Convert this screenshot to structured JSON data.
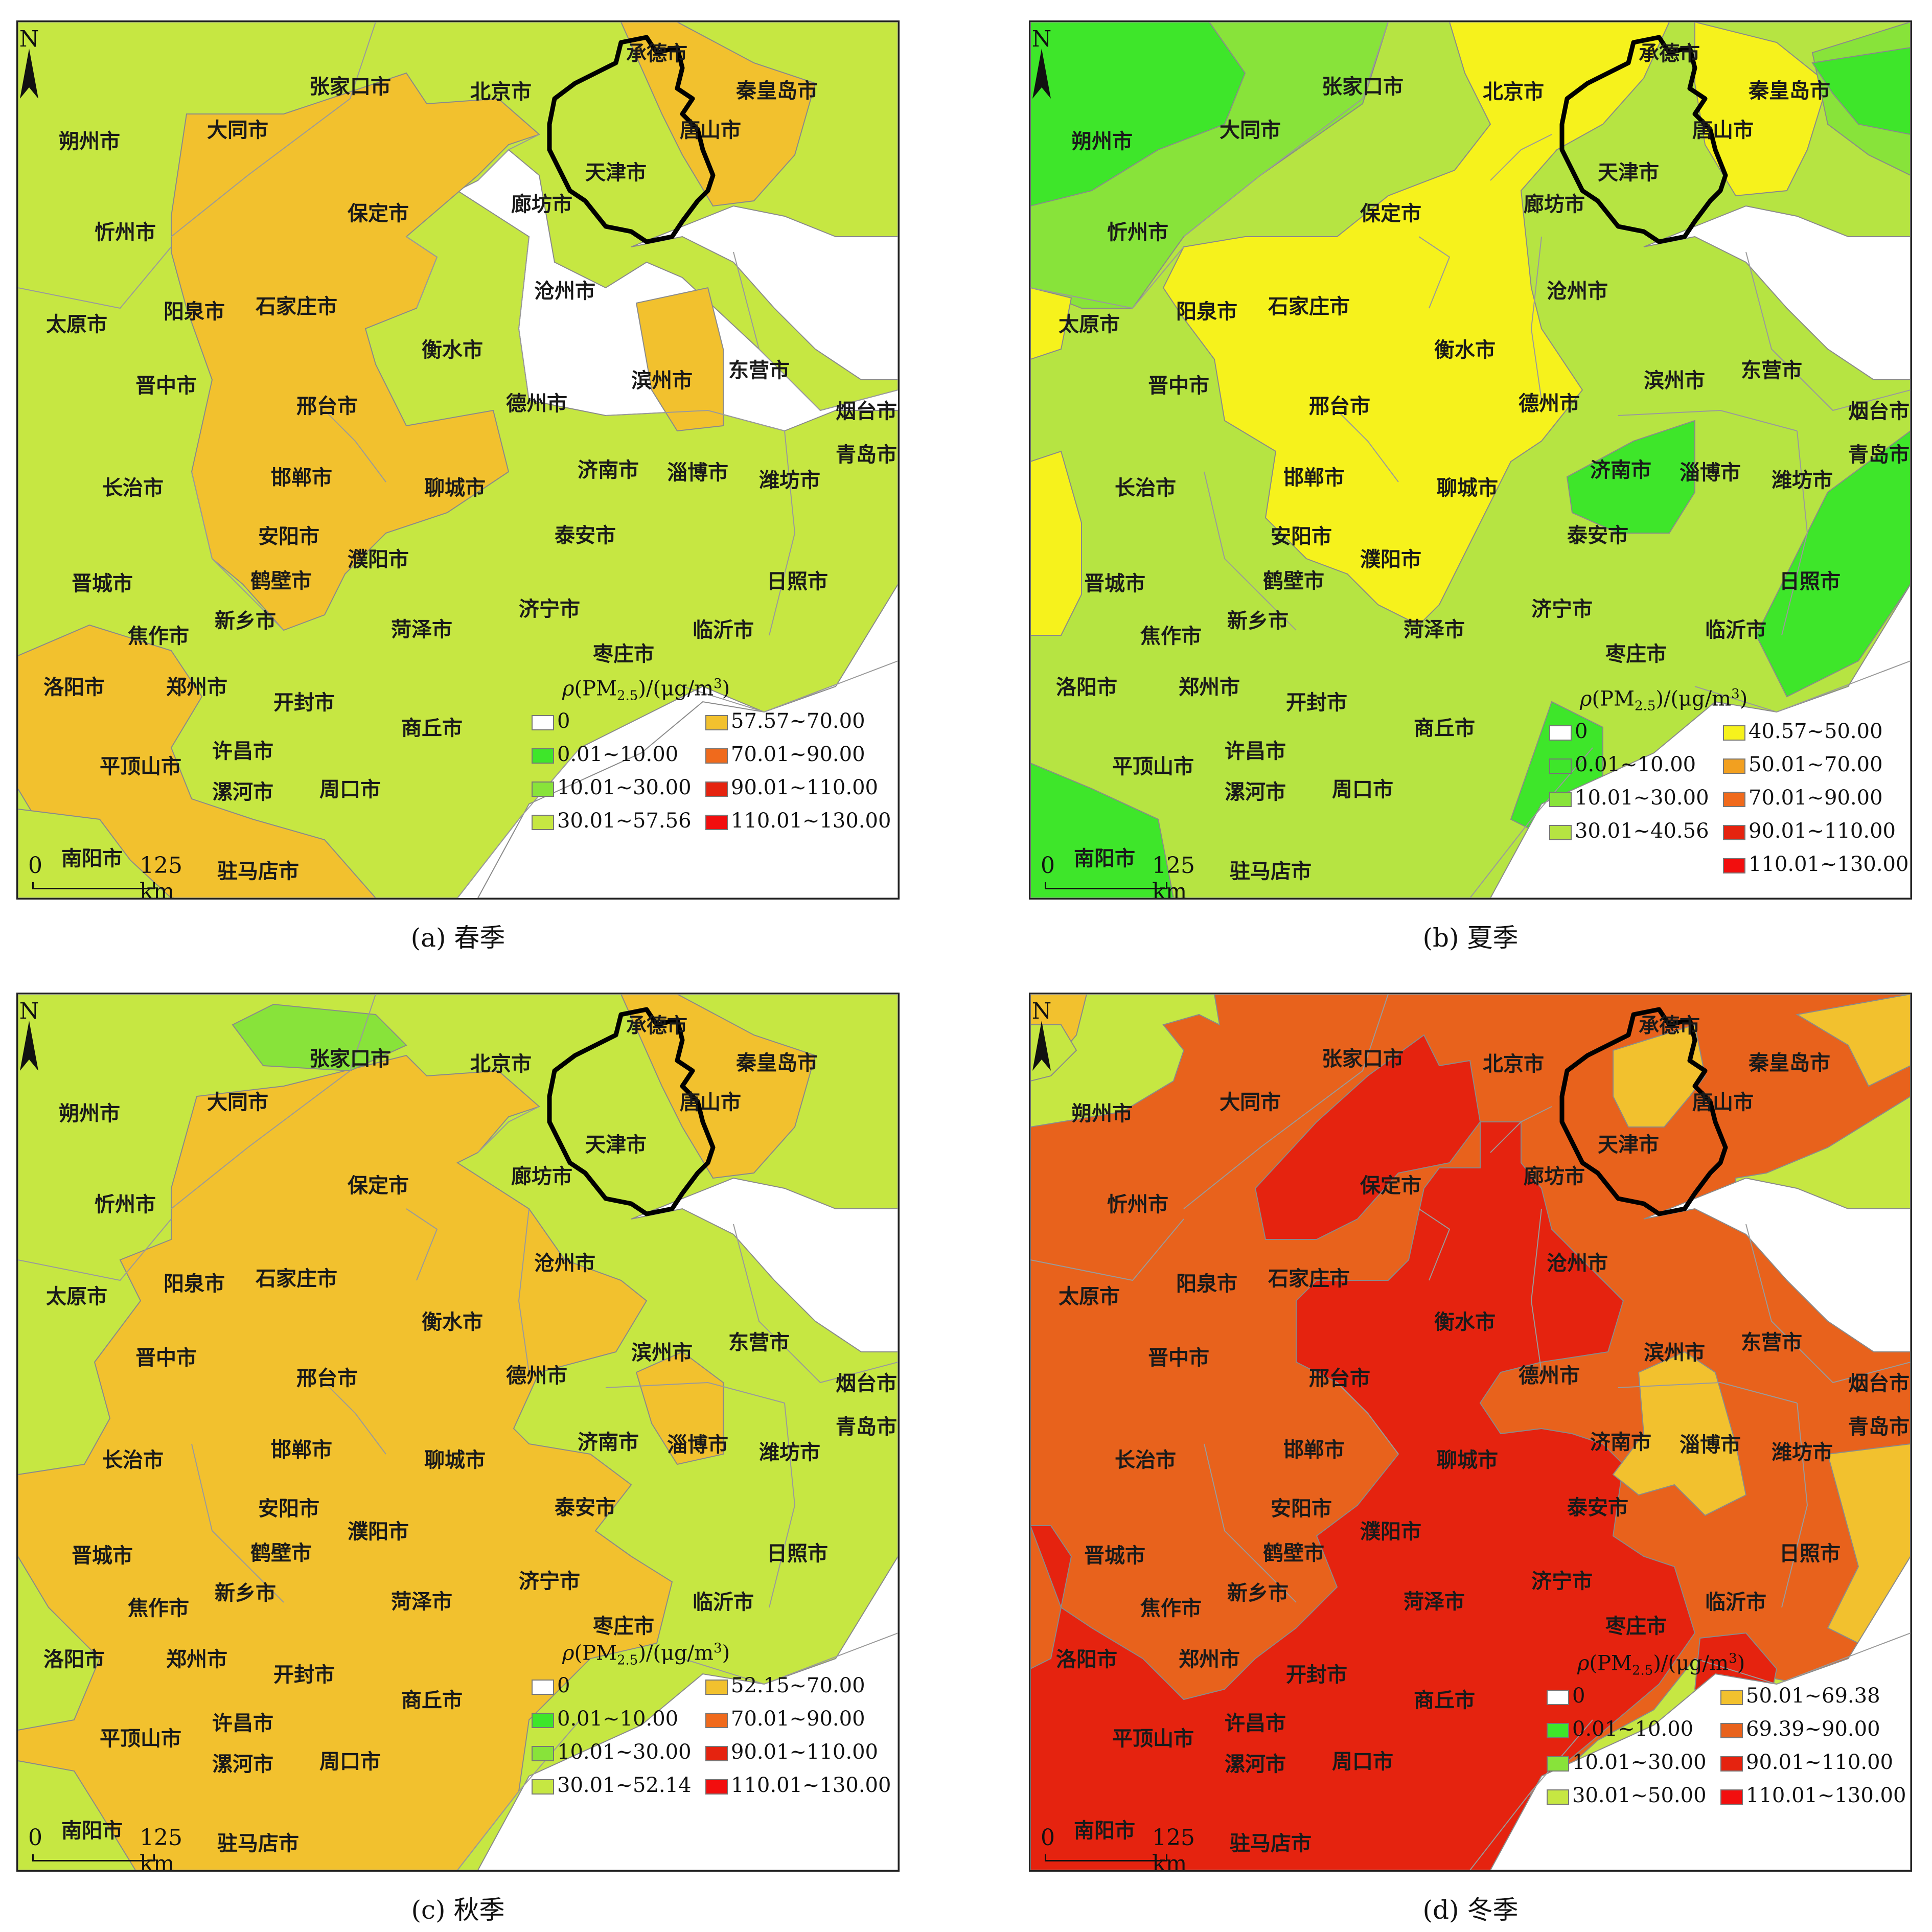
{
  "map_common": {
    "north_label": "N",
    "scale_start": "0",
    "scale_end": "125 km",
    "outline_color": "#000000",
    "sea_color": "#ffffff",
    "city_labels": [
      "承德市",
      "张家口市",
      "北京市",
      "秦皇岛市",
      "朔州市",
      "大同市",
      "唐山市",
      "天津市",
      "保定市",
      "廊坊市",
      "忻州市",
      "石家庄市",
      "沧州市",
      "太原市",
      "阳泉市",
      "衡水市",
      "东营市",
      "晋中市",
      "滨州市",
      "邢台市",
      "德州市",
      "烟台市",
      "青岛市",
      "邯郸市",
      "聊城市",
      "济南市",
      "淄博市",
      "潍坊市",
      "长治市",
      "安阳市",
      "泰安市",
      "濮阳市",
      "晋城市",
      "鹤壁市",
      "日照市",
      "新乡市",
      "菏泽市",
      "济宁市",
      "焦作市",
      "临沂市",
      "枣庄市",
      "洛阳市",
      "郑州市",
      "开封市",
      "商丘市",
      "许昌市",
      "平顶山市",
      "漯河市",
      "周口市",
      "南阳市",
      "驻马店市"
    ]
  },
  "panels": [
    {
      "caption": "(a)  春季",
      "legend": {
        "title_rho": "ρ",
        "title_main": "(PM",
        "title_sub": "2.5",
        "title_unit": ")/(μg/m",
        "title_sup": "3",
        "title_end": ")",
        "items": [
          {
            "label": "0",
            "color": "#ffffff"
          },
          {
            "label": "57.57~70.00",
            "color": "#f2c12e"
          },
          {
            "label": "0.01~10.00",
            "color": "#3ee62a"
          },
          {
            "label": "70.01~90.00",
            "color": "#f06a1c"
          },
          {
            "label": "10.01~30.00",
            "color": "#88e33a"
          },
          {
            "label": "90.01~110.00",
            "color": "#e5230f"
          },
          {
            "label": "30.01~57.56",
            "color": "#c6e742"
          },
          {
            "label": "110.01~130.00",
            "color": "#f20e0e"
          }
        ]
      }
    },
    {
      "caption": "(b)  夏季",
      "legend": {
        "title_rho": "ρ",
        "title_main": "(PM",
        "title_sub": "2.5",
        "title_unit": ")/(μg/m",
        "title_sup": "3",
        "title_end": ")",
        "items": [
          {
            "label": "0",
            "color": "#ffffff"
          },
          {
            "label": "40.57~50.00",
            "color": "#f6f21c"
          },
          {
            "label": "0.01~10.00",
            "color": "#3ee62a"
          },
          {
            "label": "50.01~70.00",
            "color": "#f2a020"
          },
          {
            "label": "10.01~30.00",
            "color": "#88e33a"
          },
          {
            "label": "70.01~90.00",
            "color": "#f06a1c"
          },
          {
            "label": "30.01~40.56",
            "color": "#b6e442"
          },
          {
            "label": "90.01~110.00",
            "color": "#e5230f"
          },
          {
            "label": "110.01~130.00",
            "color": "#f20e0e"
          }
        ]
      }
    },
    {
      "caption": "(c)  秋季",
      "legend": {
        "title_rho": "ρ",
        "title_main": "(PM",
        "title_sub": "2.5",
        "title_unit": ")/(μg/m",
        "title_sup": "3",
        "title_end": ")",
        "items": [
          {
            "label": "0",
            "color": "#ffffff"
          },
          {
            "label": "52.15~70.00",
            "color": "#f2c12e"
          },
          {
            "label": "0.01~10.00",
            "color": "#3ee62a"
          },
          {
            "label": "70.01~90.00",
            "color": "#f06a1c"
          },
          {
            "label": "10.01~30.00",
            "color": "#88e33a"
          },
          {
            "label": "90.01~110.00",
            "color": "#e5230f"
          },
          {
            "label": "30.01~52.14",
            "color": "#c6e742"
          },
          {
            "label": "110.01~130.00",
            "color": "#f20e0e"
          }
        ]
      }
    },
    {
      "caption": "(d)  冬季",
      "legend": {
        "title_rho": "ρ",
        "title_main": "(PM",
        "title_sub": "2.5",
        "title_unit": ")/(μg/m",
        "title_sup": "3",
        "title_end": ")",
        "items": [
          {
            "label": "0",
            "color": "#ffffff"
          },
          {
            "label": "50.01~69.38",
            "color": "#f2c12e"
          },
          {
            "label": "0.01~10.00",
            "color": "#3ee62a"
          },
          {
            "label": "69.39~90.00",
            "color": "#e8621c"
          },
          {
            "label": "10.01~30.00",
            "color": "#88e33a"
          },
          {
            "label": "90.01~110.00",
            "color": "#e5230f"
          },
          {
            "label": "30.01~50.00",
            "color": "#c6e742"
          },
          {
            "label": "110.01~130.00",
            "color": "#f20e0e"
          }
        ]
      }
    }
  ]
}
